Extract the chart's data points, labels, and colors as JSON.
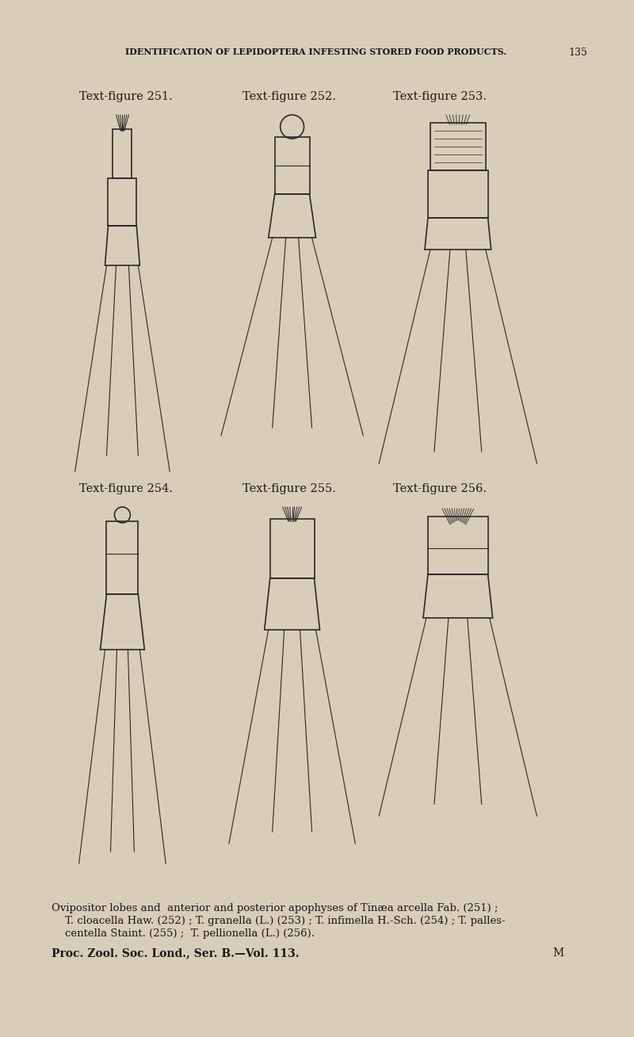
{
  "bg_color": "#d8cdb8",
  "page_color": "#cec3ad",
  "text_color": "#1a1a1a",
  "header_text": "IDENTIFICATION OF LEPIDOPTERA INFESTING STORED FOOD PRODUCTS.",
  "header_page": "135",
  "fig_labels": [
    "Text-figure 251.",
    "Text-figure 252.",
    "Text-figure 253.",
    "Text-figure 254.",
    "Text-figure 255.",
    "Text-figure 256."
  ],
  "caption_line1": "Ovipositor lobes and  anterior and posterior apophyses of Tinæa arcella Fab. (251) ;",
  "caption_line2": "    T. cloacella Haw. (252) ; T. granella (L.) (253) ; T. infimella H.-Sch. (254) ; T. palles-",
  "caption_line3": "    centella Staint. (255) ;  T. pellionella (L.) (256).",
  "footer_text": "Proc. Zool. Soc. Lond., Ser. B.—Vol. 113.",
  "footer_right": "M",
  "label_fontsize": 10.5,
  "header_fontsize": 8,
  "caption_fontsize": 9.5,
  "footer_fontsize": 10
}
